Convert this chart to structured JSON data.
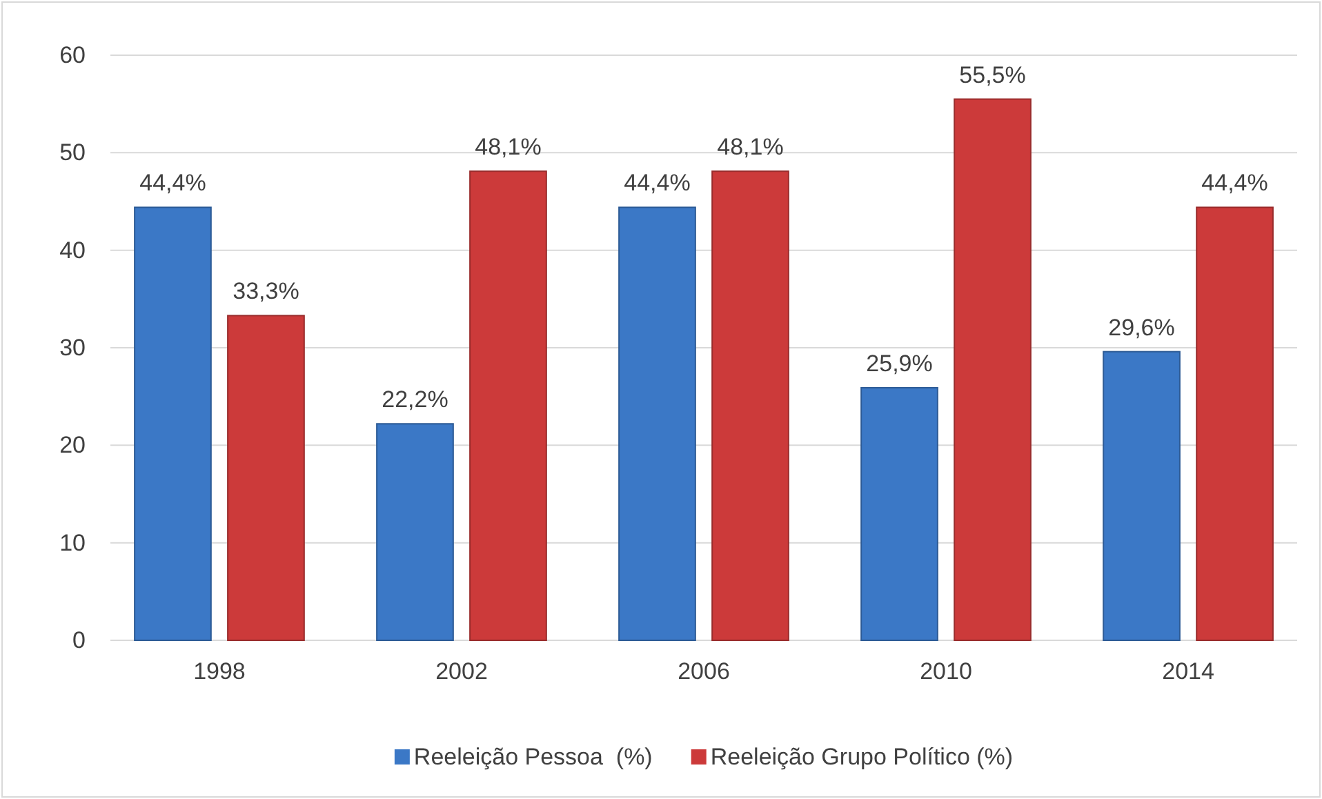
{
  "chart_data": {
    "type": "bar",
    "categories": [
      "1998",
      "2002",
      "2006",
      "2010",
      "2014"
    ],
    "series": [
      {
        "name": "Reeleição Pessoa  (%)",
        "color": "#3b78c6",
        "values": [
          44.4,
          22.2,
          44.4,
          25.9,
          29.6
        ],
        "value_labels": [
          "44,4%",
          "22,2%",
          "44,4%",
          "25,9%",
          "29,6%"
        ]
      },
      {
        "name": "Reeleição Grupo Político (%)",
        "color": "#cc3a3a",
        "values": [
          33.3,
          48.1,
          48.1,
          55.5,
          44.4
        ],
        "value_labels": [
          "33,3%",
          "48,1%",
          "48,1%",
          "55,5%",
          "44,4%"
        ]
      }
    ],
    "ylim": [
      0,
      60
    ],
    "yticks": [
      0,
      10,
      20,
      30,
      40,
      50,
      60
    ],
    "grid": "y",
    "legend": "bottom"
  }
}
